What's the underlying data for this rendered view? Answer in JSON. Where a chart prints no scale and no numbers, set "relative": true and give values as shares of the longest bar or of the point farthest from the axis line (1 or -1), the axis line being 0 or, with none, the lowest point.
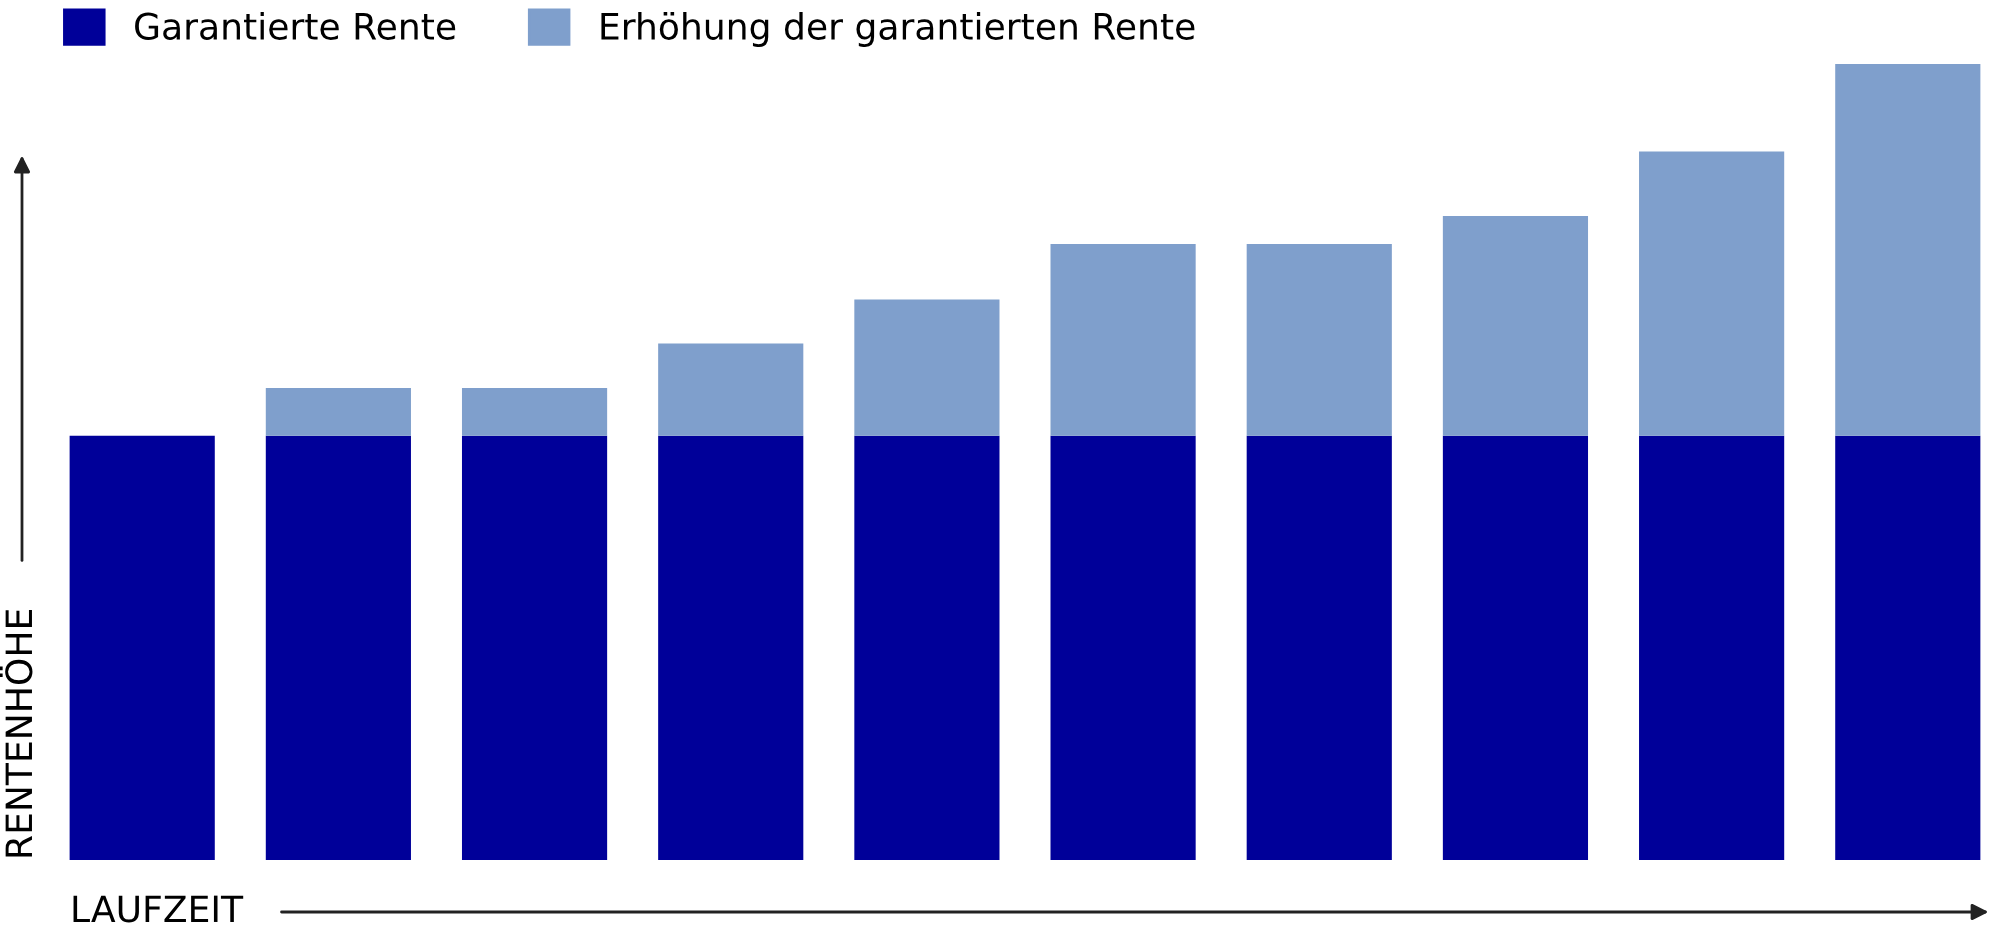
{
  "chart_data": {
    "type": "bar",
    "stacked": true,
    "relative": true,
    "xlabel": "LAUFZEIT",
    "ylabel": "RENTENHÖHE",
    "legend": "top left",
    "categories": [
      null,
      null,
      null,
      null,
      null,
      null,
      null,
      null,
      null,
      null
    ],
    "series": [
      {
        "name": "Garantierte Rente",
        "color": "#000099",
        "values": [
          0.533,
          0.533,
          0.533,
          0.533,
          0.533,
          0.533,
          0.533,
          0.533,
          0.533,
          0.533
        ]
      },
      {
        "name": "Erhöhung der garantierten Rente",
        "color": "#7f9fcc",
        "values": [
          0,
          0.06,
          0.06,
          0.116,
          0.171,
          0.241,
          0.241,
          0.276,
          0.357,
          0.467
        ]
      }
    ]
  }
}
